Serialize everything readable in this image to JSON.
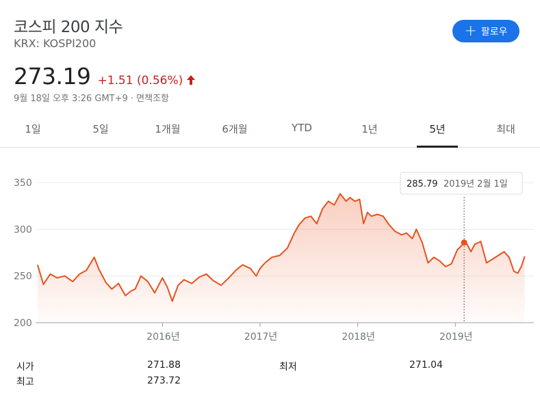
{
  "header": {
    "title": "코스피 200 지수",
    "ticker": "KRX: KOSPI200",
    "follow_label": "팔로우"
  },
  "quote": {
    "price": "273.19",
    "change": "+1.51 (0.56%)",
    "timestamp": "9월 18일 오후 3:26 GMT+9 · 면책조항"
  },
  "tabs": [
    {
      "label": "1일"
    },
    {
      "label": "5일"
    },
    {
      "label": "1개월"
    },
    {
      "label": "6개월"
    },
    {
      "label": "YTD"
    },
    {
      "label": "1년"
    },
    {
      "label": "5년"
    },
    {
      "label": "최대"
    }
  ],
  "active_tab": "5년",
  "tooltip": {
    "value": "285.79",
    "date": "2019년 2월 1일"
  },
  "stats": {
    "open_label": "시가",
    "open_value": "271.88",
    "high_label": "최고",
    "high_value": "273.72",
    "low_label": "최저",
    "low_value": "271.04"
  },
  "colors": {
    "line": "#e8501d",
    "negative": "#c5221f",
    "accent": "#1a73e8"
  },
  "chart_data": {
    "type": "area",
    "title": "",
    "xlabel": "",
    "ylabel": "",
    "ylim": [
      200,
      350
    ],
    "yticks": [
      200,
      250,
      300,
      350
    ],
    "xticks": [
      {
        "x": 2016.0,
        "label": "2016년"
      },
      {
        "x": 2017.0,
        "label": "2017년"
      },
      {
        "x": 2018.0,
        "label": "2018년"
      },
      {
        "x": 2019.0,
        "label": "2019년"
      }
    ],
    "xlim": [
      2014.7,
      2019.72
    ],
    "highlight": {
      "x": 2019.09,
      "y": 285.79
    },
    "series": [
      {
        "x": [
          2014.72,
          2014.78,
          2014.85,
          2014.92,
          2015.0,
          2015.08,
          2015.15,
          2015.22,
          2015.3,
          2015.35,
          2015.42,
          2015.48,
          2015.55,
          2015.62,
          2015.68,
          2015.72,
          2015.78,
          2015.85,
          2015.92,
          2016.0,
          2016.05,
          2016.1,
          2016.16,
          2016.22,
          2016.3,
          2016.38,
          2016.45,
          2016.52,
          2016.6,
          2016.68,
          2016.75,
          2016.82,
          2016.9,
          2016.96,
          2017.0,
          2017.05,
          2017.12,
          2017.2,
          2017.28,
          2017.35,
          2017.4,
          2017.46,
          2017.52,
          2017.58,
          2017.64,
          2017.7,
          2017.76,
          2017.82,
          2017.88,
          2017.92,
          2017.97,
          2018.02,
          2018.06,
          2018.1,
          2018.14,
          2018.2,
          2018.26,
          2018.32,
          2018.38,
          2018.45,
          2018.5,
          2018.56,
          2018.6,
          2018.66,
          2018.72,
          2018.78,
          2018.84,
          2018.9,
          2018.96,
          2019.02,
          2019.06,
          2019.09,
          2019.12,
          2019.16,
          2019.2,
          2019.26,
          2019.32,
          2019.38,
          2019.44,
          2019.5,
          2019.55,
          2019.6,
          2019.64,
          2019.68,
          2019.71
        ],
        "y": [
          262,
          241,
          252,
          248,
          250,
          244,
          252,
          256,
          270,
          257,
          243,
          236,
          242,
          229,
          234,
          236,
          250,
          244,
          232,
          248,
          238,
          223,
          240,
          246,
          242,
          249,
          252,
          245,
          240,
          248,
          256,
          262,
          258,
          250,
          258,
          264,
          270,
          272,
          280,
          296,
          305,
          312,
          314,
          306,
          322,
          330,
          326,
          338,
          330,
          334,
          330,
          332,
          306,
          318,
          314,
          316,
          314,
          305,
          298,
          294,
          296,
          290,
          300,
          286,
          264,
          270,
          266,
          260,
          263,
          278,
          282,
          285.79,
          284,
          276,
          284,
          287,
          264,
          268,
          272,
          276,
          270,
          255,
          253,
          261,
          271
        ]
      }
    ]
  }
}
